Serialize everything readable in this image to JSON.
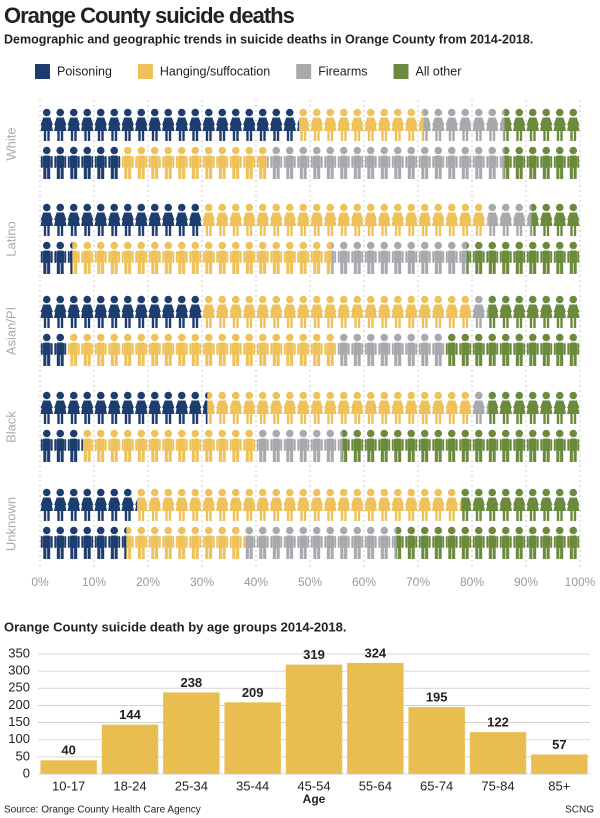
{
  "chart_data": [
    {
      "type": "pictogram-stack",
      "title": "Orange County suicide deaths",
      "subtitle": "Demographic and geographic trends in suicide deaths in Orange County from 2014-2018.",
      "categories": [
        "White",
        null,
        "Latino",
        null,
        "Asian/PI",
        null,
        "Black",
        null,
        "Unknown",
        null
      ],
      "series": [
        {
          "name": "Poisoning",
          "color": "#1d3d6e",
          "values": [
            48,
            15,
            30,
            6,
            30,
            5,
            31,
            8,
            18,
            16
          ]
        },
        {
          "name": "Hanging/suffocation",
          "color": "#eec15a",
          "values": [
            23,
            27,
            53,
            48,
            50,
            50,
            49,
            32,
            60,
            22
          ]
        },
        {
          "name": "Firearms",
          "color": "#a8a9ad",
          "values": [
            15,
            44,
            8,
            25,
            3,
            20,
            3,
            16,
            0,
            28
          ]
        },
        {
          "name": "All other",
          "color": "#6b8a3e",
          "values": [
            14,
            14,
            9,
            21,
            17,
            25,
            17,
            44,
            22,
            34
          ]
        }
      ],
      "xlim": [
        0,
        100
      ],
      "xticks": [
        {
          "value": 0,
          "label": "0%"
        },
        {
          "value": 10,
          "label": "10%"
        },
        {
          "value": 20,
          "label": "20%"
        },
        {
          "value": 30,
          "label": "30%"
        },
        {
          "value": 40,
          "label": "40%"
        },
        {
          "value": 50,
          "label": "50%"
        },
        {
          "value": 60,
          "label": "60%"
        },
        {
          "value": 70,
          "label": "70%"
        },
        {
          "value": 80,
          "label": "80%"
        },
        {
          "value": 90,
          "label": "90%"
        },
        {
          "value": 100,
          "label": "100%"
        }
      ],
      "grid": true
    },
    {
      "type": "bar",
      "title": "Orange County suicide death by age groups 2014-2018.",
      "categories": [
        "10-17",
        "18-24",
        "25-34",
        "35-44",
        "45-54",
        "55-64",
        "65-74",
        "75-84",
        "85+"
      ],
      "values": [
        40,
        144,
        238,
        209,
        319,
        324,
        195,
        122,
        57
      ],
      "color": "#e9bd4f",
      "xlabel": "Age",
      "ylim": [
        0,
        350
      ],
      "yticks": [
        0,
        50,
        100,
        150,
        200,
        250,
        300,
        350
      ],
      "grid": true
    }
  ],
  "source": "Source: Orange County Health Care Agency",
  "credit": "SCNG"
}
